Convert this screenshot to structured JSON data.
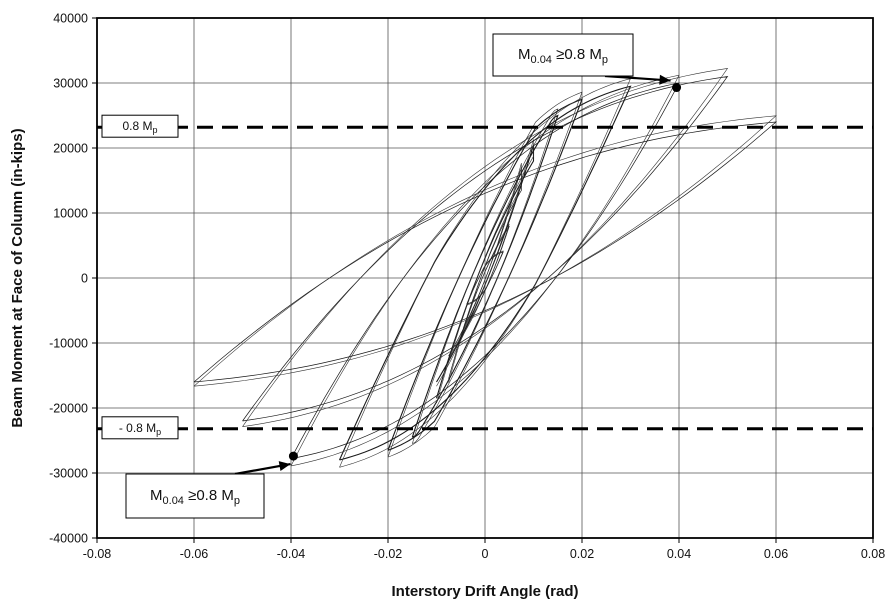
{
  "chart_data": {
    "type": "line",
    "xlabel": "Interstory Drift Angle (rad)",
    "ylabel": "Beam Moment at Face of Column (in-kips)",
    "xlim": [
      -0.08,
      0.08
    ],
    "ylim": [
      -40000,
      40000
    ],
    "xticks": [
      "-0.08",
      "-0.06",
      "-0.04",
      "-0.02",
      "0",
      "0.02",
      "0.04",
      "0.06",
      "0.08"
    ],
    "yticks": [
      "40000",
      "30000",
      "20000",
      "10000",
      "0",
      "-10000",
      "-20000",
      "-30000",
      "-40000"
    ],
    "grid": true,
    "reference_lines": [
      {
        "label_main": "0.8 M",
        "label_sub": "p",
        "y": 23200,
        "style": "dashed"
      },
      {
        "label_main": "- 0.8 M",
        "label_sub": "p",
        "y": -23200,
        "style": "dashed"
      }
    ],
    "annotations": [
      {
        "main": "M",
        "sub1": "0.04",
        "mid": " ≥0.8 M",
        "sub2": "p",
        "points_to": [
          0.0395,
          29300
        ],
        "placement": "top-center"
      },
      {
        "main": "M",
        "sub1": "0.04",
        "mid": " ≥0.8 M",
        "sub2": "p",
        "points_to": [
          -0.0395,
          -27400
        ],
        "placement": "bottom-left"
      }
    ],
    "series": [
      {
        "values": [
          {
            "amp": 0.00375,
            "ypos": 4000,
            "yneg": -4000
          },
          {
            "amp": 0.005,
            "ypos": 8000,
            "yneg": -9000
          },
          {
            "amp": 0.0075,
            "ypos": 17000,
            "yneg": -15500
          },
          {
            "amp": 0.01,
            "ypos": 20500,
            "yneg": -18500
          },
          {
            "amp": 0.015,
            "ypos": 25000,
            "yneg": -24500
          },
          {
            "amp": 0.02,
            "ypos": 27500,
            "yneg": -26500
          },
          {
            "amp": 0.03,
            "ypos": 29500,
            "yneg": -28000
          },
          {
            "amp": 0.04,
            "ypos": 30000,
            "yneg": -27800
          },
          {
            "amp": 0.05,
            "ypos": 31000,
            "yneg": -22000
          },
          {
            "amp": 0.06,
            "ypos": 24000,
            "yneg": -16000
          }
        ]
      }
    ]
  }
}
